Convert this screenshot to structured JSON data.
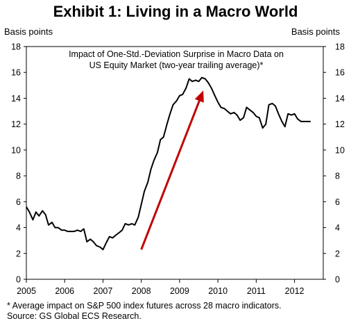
{
  "header": {
    "title": "Exhibit 1: Living in a Macro World",
    "left_unit": "Basis points",
    "right_unit": "Basis points"
  },
  "footnote": {
    "line1": "* Average impact on S&P 500 index futures across 28 macro indicators.",
    "line2": "Source: GS Global ECS Research."
  },
  "chart_data": {
    "type": "line",
    "title_lines": [
      "Impact of One-Std.-Deviation Surprise in Macro Data on",
      "US Equity Market (two-year trailing average)*"
    ],
    "ylabel": "Basis points",
    "ylim": [
      0,
      18
    ],
    "yticks": [
      0,
      2,
      4,
      6,
      8,
      10,
      12,
      14,
      16,
      18
    ],
    "xlim": [
      2005.0,
      2012.75
    ],
    "xticks": [
      2005,
      2006,
      2007,
      2008,
      2009,
      2010,
      2011,
      2012
    ],
    "xtick_labels": [
      "2005",
      "2006",
      "2007",
      "2008",
      "2009",
      "2010",
      "2011",
      "2012"
    ],
    "series": [
      {
        "color": "#000000",
        "x": [
          2005.0,
          2005.08,
          2005.17,
          2005.25,
          2005.33,
          2005.42,
          2005.5,
          2005.58,
          2005.67,
          2005.75,
          2005.83,
          2005.92,
          2006.0,
          2006.08,
          2006.17,
          2006.25,
          2006.33,
          2006.42,
          2006.5,
          2006.58,
          2006.67,
          2006.75,
          2006.83,
          2006.92,
          2007.0,
          2007.08,
          2007.17,
          2007.25,
          2007.33,
          2007.42,
          2007.5,
          2007.58,
          2007.67,
          2007.75,
          2007.83,
          2007.92,
          2008.0,
          2008.08,
          2008.17,
          2008.25,
          2008.33,
          2008.42,
          2008.5,
          2008.58,
          2008.67,
          2008.75,
          2008.83,
          2008.92,
          2009.0,
          2009.08,
          2009.17,
          2009.25,
          2009.33,
          2009.42,
          2009.5,
          2009.58,
          2009.67,
          2009.75,
          2009.83,
          2009.92,
          2010.0,
          2010.08,
          2010.17,
          2010.25,
          2010.33,
          2010.42,
          2010.5,
          2010.58,
          2010.67,
          2010.75,
          2010.83,
          2010.92,
          2011.0,
          2011.08,
          2011.17,
          2011.25,
          2011.33,
          2011.42,
          2011.5,
          2011.58,
          2011.67,
          2011.75,
          2011.83,
          2011.92,
          2012.0,
          2012.08,
          2012.17,
          2012.25,
          2012.33,
          2012.42
        ],
        "y": [
          5.6,
          5.2,
          4.6,
          5.2,
          4.9,
          5.3,
          5.0,
          4.2,
          4.4,
          4.0,
          4.0,
          3.8,
          3.8,
          3.7,
          3.7,
          3.7,
          3.8,
          3.7,
          3.9,
          2.9,
          3.1,
          2.9,
          2.6,
          2.5,
          2.3,
          2.8,
          3.3,
          3.2,
          3.4,
          3.6,
          3.8,
          4.3,
          4.2,
          4.3,
          4.2,
          4.8,
          5.8,
          6.8,
          7.5,
          8.5,
          9.2,
          9.8,
          10.8,
          11.0,
          12.0,
          12.8,
          13.5,
          13.8,
          14.2,
          14.3,
          14.8,
          15.5,
          15.3,
          15.4,
          15.3,
          15.6,
          15.5,
          15.2,
          14.8,
          14.2,
          13.7,
          13.3,
          13.2,
          13.0,
          12.8,
          12.9,
          12.7,
          12.3,
          12.5,
          13.3,
          13.1,
          12.9,
          12.6,
          12.5,
          11.7,
          12.0,
          13.5,
          13.6,
          13.4,
          12.8,
          12.2,
          11.8,
          12.8,
          12.7,
          12.8,
          12.4,
          12.2,
          12.2,
          12.2,
          12.2
        ]
      }
    ],
    "annotation": {
      "type": "arrow",
      "color": "#c00000",
      "from": [
        2008.0,
        2.3
      ],
      "to": [
        2009.62,
        14.6
      ]
    }
  }
}
